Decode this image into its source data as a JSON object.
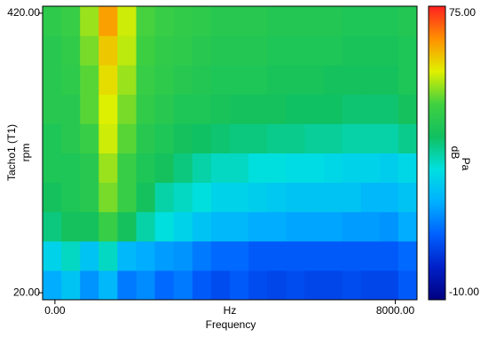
{
  "chart_data": {
    "type": "heatmap",
    "x_label": "Frequency",
    "x_unit": "Hz",
    "y_label": "Tacho1 (T1)",
    "y_unit": "rpm",
    "colorbar_label": "dB",
    "colorbar_unit": "Pa",
    "x": [
      -70,
      370,
      810,
      1250,
      1690,
      2130,
      2570,
      3010,
      3450,
      3890,
      4330,
      4770,
      5210,
      5650,
      6090,
      6530,
      6970,
      7410,
      7850,
      8290
    ],
    "y": [
      31,
      73,
      115,
      157,
      199,
      241,
      283,
      325,
      367,
      409
    ],
    "z": [
      [
        18,
        22,
        15,
        20,
        12,
        14,
        10,
        12,
        8,
        6,
        8,
        6,
        5,
        6,
        5,
        5,
        6,
        5,
        5,
        8
      ],
      [
        25,
        30,
        22,
        30,
        20,
        18,
        16,
        15,
        12,
        10,
        10,
        8,
        8,
        8,
        8,
        8,
        8,
        8,
        8,
        10
      ],
      [
        35,
        38,
        38,
        45,
        38,
        32,
        28,
        25,
        22,
        20,
        20,
        18,
        18,
        17,
        17,
        17,
        16,
        16,
        15,
        18
      ],
      [
        38,
        40,
        42,
        50,
        45,
        38,
        32,
        30,
        28,
        25,
        25,
        24,
        23,
        22,
        22,
        22,
        22,
        20,
        20,
        22
      ],
      [
        40,
        40,
        42,
        52,
        45,
        40,
        38,
        35,
        32,
        30,
        30,
        28,
        28,
        27,
        27,
        26,
        25,
        25,
        24,
        26
      ],
      [
        40,
        42,
        45,
        55,
        48,
        42,
        40,
        38,
        37,
        36,
        35,
        35,
        34,
        34,
        33,
        33,
        32,
        32,
        32,
        34
      ],
      [
        42,
        42,
        48,
        56,
        50,
        44,
        42,
        40,
        40,
        39,
        38,
        38,
        38,
        37,
        37,
        37,
        36,
        36,
        36,
        38
      ],
      [
        42,
        43,
        48,
        58,
        52,
        45,
        43,
        42,
        41,
        40,
        40,
        40,
        39,
        39,
        39,
        38,
        38,
        38,
        38,
        40
      ],
      [
        42,
        44,
        50,
        60,
        54,
        46,
        44,
        43,
        42,
        41,
        41,
        41,
        40,
        40,
        40,
        40,
        39,
        39,
        39,
        40
      ],
      [
        43,
        45,
        52,
        64,
        55,
        47,
        45,
        44,
        43,
        42,
        42,
        42,
        41,
        41,
        41,
        41,
        40,
        40,
        40,
        41
      ]
    ],
    "xlim": [
      -290,
      8510
    ],
    "ylim": [
      10,
      430
    ],
    "xticks": [
      {
        "value": 0,
        "label": "0.00"
      },
      {
        "value": 8000,
        "label": "8000.00"
      }
    ],
    "yticks": [
      {
        "value": 20,
        "label": "20.00"
      },
      {
        "value": 420,
        "label": "420.00"
      }
    ],
    "zlim": [
      -10,
      75
    ],
    "zticks": [
      {
        "value": -10,
        "label": "-10.00"
      },
      {
        "value": 75,
        "label": "75.00"
      }
    ],
    "colorscale": [
      "#00007f",
      "#0020c8",
      "#0060ff",
      "#00b0ff",
      "#00e0e0",
      "#10c060",
      "#40d040",
      "#e0f000",
      "#ff9000",
      "#ff2020"
    ]
  }
}
